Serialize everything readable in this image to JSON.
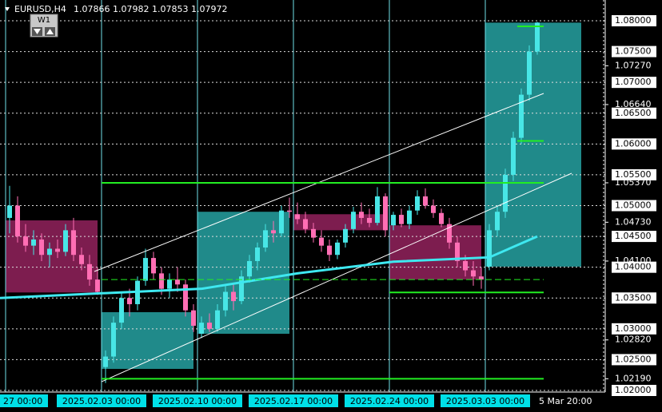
{
  "chart_data": {
    "type": "candlestick",
    "symbol": "EURUSD,H4",
    "quote": "1.07866 1.07982 1.07853 1.07972",
    "timeframe_button": "W1",
    "ylim": [
      1.02,
      1.08
    ],
    "bull_color": "#48e6e6",
    "bear_color": "#ff6eb4",
    "yticks": [
      {
        "value": 1.0727,
        "label": "1.07270"
      },
      {
        "value": 1.0664,
        "label": "1.06640"
      },
      {
        "value": 1.0537,
        "label": "1.05370"
      },
      {
        "value": 1.0473,
        "label": "1.04730"
      },
      {
        "value": 1.041,
        "label": "1.04100"
      },
      {
        "value": 1.0282,
        "label": "1.02820"
      },
      {
        "value": 1.0219,
        "label": "1.02190"
      }
    ],
    "levels": [
      {
        "value": 1.08,
        "label": "1.08000"
      },
      {
        "value": 1.075,
        "label": "1.07500"
      },
      {
        "value": 1.07,
        "label": "1.07000"
      },
      {
        "value": 1.065,
        "label": "1.06500"
      },
      {
        "value": 1.06,
        "label": "1.06000"
      },
      {
        "value": 1.055,
        "label": "1.05500"
      },
      {
        "value": 1.05,
        "label": "1.05000"
      },
      {
        "value": 1.045,
        "label": "1.04500"
      },
      {
        "value": 1.04,
        "label": "1.04000"
      },
      {
        "value": 1.035,
        "label": "1.03500"
      },
      {
        "value": 1.03,
        "label": "1.03000"
      },
      {
        "value": 1.025,
        "label": "1.02500"
      },
      {
        "value": 1.02,
        "label": "1.02000"
      }
    ],
    "xlabels": [
      "27 00:00",
      "2025.02.03 00:00",
      "2025.02.10 00:00",
      "2025.02.17 00:00",
      "2025.02.24 00:00",
      "2025.03.03 00:00"
    ],
    "cursor_label": "5 Mar 20:00",
    "weekly": [
      {
        "open": 1.0476,
        "close": 1.0359
      },
      {
        "open": 1.0235,
        "close": 1.0327
      },
      {
        "open": 1.0292,
        "close": 1.049
      },
      {
        "open": 1.0486,
        "close": 1.046
      },
      {
        "open": 1.0468,
        "close": 1.038
      },
      {
        "open": 1.0401,
        "close": 1.0797
      }
    ],
    "green_levels": [
      {
        "value": 1.0537,
        "start": 12,
        "dashed": false
      },
      {
        "value": 1.038,
        "start": 12,
        "dashed": true
      },
      {
        "value": 1.0359,
        "start": 48,
        "dashed": false
      },
      {
        "value": 1.0219,
        "start": 12,
        "dashed": false
      },
      {
        "value": 1.0605,
        "start": 64,
        "dashed": false
      },
      {
        "value": 1.0791,
        "start": 64,
        "dashed": false
      }
    ],
    "ma": {
      "x": [
        0,
        12,
        24,
        36,
        48,
        60,
        66
      ],
      "values": [
        1.035,
        1.0358,
        1.0365,
        1.039,
        1.0409,
        1.0416,
        1.045
      ]
    },
    "candles": [
      [
        1.048,
        1.0532,
        1.0455,
        1.05
      ],
      [
        1.05,
        1.0515,
        1.044,
        1.045
      ],
      [
        1.045,
        1.047,
        1.0425,
        1.0435
      ],
      [
        1.0435,
        1.046,
        1.042,
        1.0445
      ],
      [
        1.0445,
        1.0455,
        1.041,
        1.042
      ],
      [
        1.042,
        1.044,
        1.04,
        1.043
      ],
      [
        1.043,
        1.0445,
        1.0415,
        1.0425
      ],
      [
        1.0425,
        1.047,
        1.0418,
        1.046
      ],
      [
        1.046,
        1.048,
        1.041,
        1.042
      ],
      [
        1.042,
        1.0432,
        1.0395,
        1.0405
      ],
      [
        1.0405,
        1.042,
        1.037,
        1.038
      ],
      [
        1.038,
        1.04,
        1.0355,
        1.036
      ],
      [
        1.0238,
        1.0265,
        1.0212,
        1.0255
      ],
      [
        1.0255,
        1.032,
        1.0245,
        1.031
      ],
      [
        1.031,
        1.036,
        1.03,
        1.035
      ],
      [
        1.035,
        1.0365,
        1.032,
        1.034
      ],
      [
        1.034,
        1.0385,
        1.033,
        1.0378
      ],
      [
        1.0378,
        1.043,
        1.037,
        1.0415
      ],
      [
        1.0415,
        1.0425,
        1.038,
        1.039
      ],
      [
        1.039,
        1.04,
        1.0355,
        1.0365
      ],
      [
        1.0365,
        1.039,
        1.035,
        1.038
      ],
      [
        1.038,
        1.04,
        1.036,
        1.0372
      ],
      [
        1.0372,
        1.038,
        1.032,
        1.033
      ],
      [
        1.033,
        1.034,
        1.0295,
        1.0305
      ],
      [
        1.0292,
        1.032,
        1.0285,
        1.031
      ],
      [
        1.031,
        1.0325,
        1.0295,
        1.03
      ],
      [
        1.03,
        1.034,
        1.0295,
        1.033
      ],
      [
        1.033,
        1.037,
        1.032,
        1.036
      ],
      [
        1.036,
        1.0375,
        1.033,
        1.0345
      ],
      [
        1.0345,
        1.0395,
        1.034,
        1.0385
      ],
      [
        1.0385,
        1.042,
        1.0375,
        1.041
      ],
      [
        1.041,
        1.044,
        1.0395,
        1.0432
      ],
      [
        1.0432,
        1.047,
        1.0425,
        1.046
      ],
      [
        1.046,
        1.0475,
        1.044,
        1.0455
      ],
      [
        1.0455,
        1.05,
        1.045,
        1.0492
      ],
      [
        1.0492,
        1.0513,
        1.048,
        1.049
      ],
      [
        1.0486,
        1.0505,
        1.047,
        1.0478
      ],
      [
        1.0478,
        1.049,
        1.0455,
        1.0462
      ],
      [
        1.0462,
        1.0472,
        1.044,
        1.0448
      ],
      [
        1.0448,
        1.046,
        1.0425,
        1.0435
      ],
      [
        1.0435,
        1.0445,
        1.041,
        1.042
      ],
      [
        1.042,
        1.0445,
        1.0413,
        1.044
      ],
      [
        1.044,
        1.047,
        1.0432,
        1.0462
      ],
      [
        1.0462,
        1.0498,
        1.0455,
        1.049
      ],
      [
        1.049,
        1.0505,
        1.047,
        1.048
      ],
      [
        1.048,
        1.0495,
        1.0465,
        1.0472
      ],
      [
        1.0472,
        1.053,
        1.0468,
        1.0515
      ],
      [
        1.0515,
        1.052,
        1.045,
        1.046
      ],
      [
        1.0468,
        1.049,
        1.046,
        1.0485
      ],
      [
        1.0485,
        1.0495,
        1.0465,
        1.047
      ],
      [
        1.047,
        1.05,
        1.0462,
        1.0492
      ],
      [
        1.0492,
        1.0525,
        1.0485,
        1.0515
      ],
      [
        1.0515,
        1.0528,
        1.0495,
        1.05
      ],
      [
        1.05,
        1.051,
        1.048,
        1.0488
      ],
      [
        1.0488,
        1.0495,
        1.0465,
        1.047
      ],
      [
        1.047,
        1.048,
        1.043,
        1.044
      ],
      [
        1.044,
        1.045,
        1.04,
        1.041
      ],
      [
        1.041,
        1.042,
        1.0385,
        1.0395
      ],
      [
        1.0395,
        1.041,
        1.037,
        1.0385
      ],
      [
        1.0385,
        1.04,
        1.0365,
        1.038
      ],
      [
        1.0401,
        1.047,
        1.0395,
        1.046
      ],
      [
        1.046,
        1.05,
        1.045,
        1.049
      ],
      [
        1.049,
        1.056,
        1.048,
        1.055
      ],
      [
        1.055,
        1.062,
        1.054,
        1.061
      ],
      [
        1.061,
        1.069,
        1.06,
        1.068
      ],
      [
        1.068,
        1.076,
        1.067,
        1.075
      ],
      [
        1.075,
        1.0798,
        1.0745,
        1.0797
      ]
    ]
  }
}
